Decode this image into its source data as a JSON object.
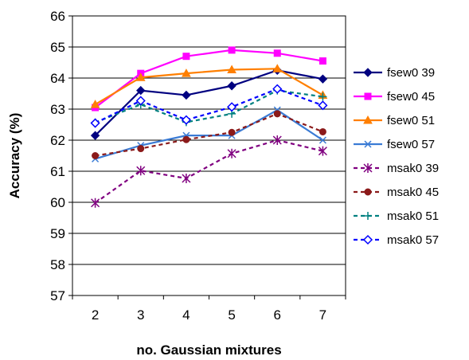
{
  "chart_data": {
    "type": "line",
    "xlabel": "no. Gaussian mixtures",
    "ylabel": "Accuracy (%)",
    "x": [
      2,
      3,
      4,
      5,
      6,
      7
    ],
    "ylim": [
      57,
      66
    ],
    "yticks": [
      57,
      58,
      59,
      60,
      61,
      62,
      63,
      64,
      65,
      66
    ],
    "grid": "horizontal",
    "legend": "right",
    "series": [
      {
        "name": "fsew0 39",
        "values": [
          62.15,
          63.6,
          63.45,
          63.75,
          64.25,
          63.97
        ],
        "color": "#000080",
        "dash": "solid",
        "marker": "diamond-filled"
      },
      {
        "name": "fsew0 45",
        "values": [
          63.05,
          64.15,
          64.7,
          64.9,
          64.8,
          64.55
        ],
        "color": "#ff00ff",
        "dash": "solid",
        "marker": "square-filled"
      },
      {
        "name": "fsew0 51",
        "values": [
          63.15,
          64.02,
          64.15,
          64.27,
          64.3,
          63.45
        ],
        "color": "#ff7f00",
        "dash": "solid",
        "marker": "triangle-filled"
      },
      {
        "name": "fsew0 57",
        "values": [
          61.4,
          61.83,
          62.15,
          62.15,
          62.97,
          62.0
        ],
        "color": "#3a7bd5",
        "dash": "solid",
        "marker": "x"
      },
      {
        "name": "msak0 39",
        "values": [
          59.98,
          61.02,
          60.77,
          61.57,
          62.0,
          61.65
        ],
        "color": "#800080",
        "dash": "dashed",
        "marker": "asterisk"
      },
      {
        "name": "msak0 45",
        "values": [
          61.5,
          61.73,
          62.02,
          62.25,
          62.85,
          62.27
        ],
        "color": "#8b1a1a",
        "dash": "dashed",
        "marker": "circle-filled"
      },
      {
        "name": "msak0 51",
        "values": [
          62.57,
          63.15,
          62.58,
          62.85,
          63.6,
          63.4
        ],
        "color": "#008080",
        "dash": "dashed",
        "marker": "plus"
      },
      {
        "name": "msak0 57",
        "values": [
          62.55,
          63.27,
          62.65,
          63.07,
          63.65,
          63.12
        ],
        "color": "#0000ff",
        "dash": "dashed",
        "marker": "diamond-open"
      }
    ]
  }
}
